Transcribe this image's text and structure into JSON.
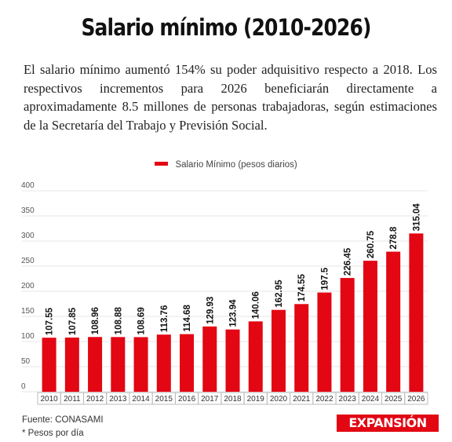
{
  "title": "Salario mínimo (2010-2026)",
  "subtitle": "El salario mínimo aumentó 154% su poder adquisitivo respecto a 2018. Los respectivos incrementos para 2026 beneficiarán directamente a aproximadamente 8.5 millones de personas trabajadoras, según estimaciones de la Secretaría del Trabajo y Previsión Social.",
  "footer": {
    "source": "Fuente: CONASAMI",
    "note": "* Pesos por día"
  },
  "brand": "EXPANSIÓN",
  "colors": {
    "bar": "#e30613",
    "grid": "#e6e6e6",
    "brand": "#e30613"
  },
  "chart_data": {
    "type": "bar",
    "categories": [
      "2010",
      "2011",
      "2012",
      "2013",
      "2014",
      "2015",
      "2016",
      "2017",
      "2018",
      "2019",
      "2020",
      "2021",
      "2022",
      "2023",
      "2024",
      "2025",
      "2026"
    ],
    "series": [
      {
        "name": "Salario Mínimo (pesos diarios)",
        "values": [
          107.55,
          107.85,
          108.96,
          108.88,
          108.69,
          113.76,
          114.68,
          129.93,
          123.94,
          140.06,
          162.95,
          174.55,
          197.5,
          226.45,
          260.75,
          278.8,
          315.04
        ],
        "labels": [
          "107.55",
          "107.85",
          "108.96",
          "108.88",
          "108.69",
          "113.76",
          "114.68",
          "129.93",
          "123.94",
          "140.06",
          "162.95",
          "174.55",
          "197.5",
          "226.45",
          "260.75",
          "278.8",
          "315.04"
        ]
      }
    ],
    "yticks": [
      "0",
      "50",
      "100",
      "150",
      "200",
      "250",
      "300",
      "350",
      "400"
    ],
    "ylim": [
      0,
      400
    ],
    "grid": true,
    "legend_position": "top-center"
  }
}
